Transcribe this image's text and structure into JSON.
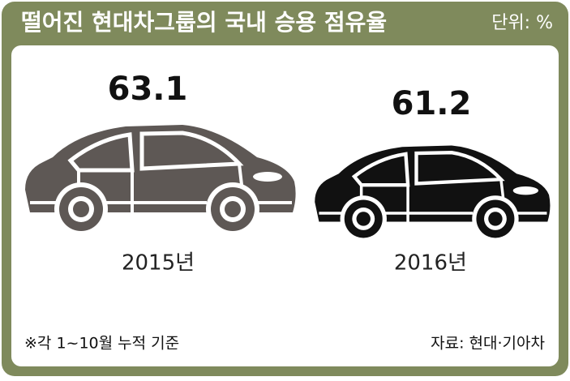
{
  "chart_data": {
    "type": "pictograph",
    "title": "떨어진 현대차그룹의 국내 승용 점유율",
    "unit": "단위: %",
    "categories": [
      "2015년",
      "2016년"
    ],
    "values": [
      63.1,
      61.2
    ],
    "colors": [
      "#5e5855",
      "#111111"
    ],
    "footnote": "※각 1~10월 누적 기준",
    "source": "자료: 현대·기아차"
  }
}
